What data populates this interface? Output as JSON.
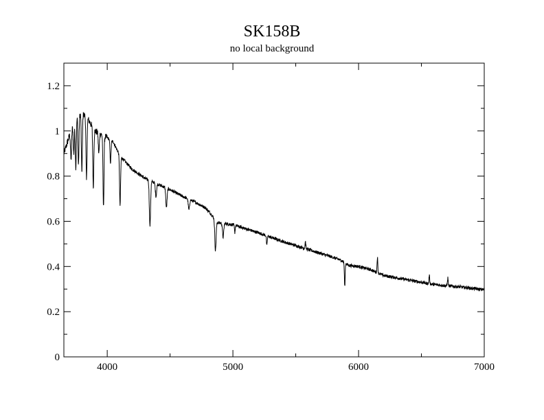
{
  "chart_data": {
    "type": "line",
    "title": "SK158B",
    "subtitle": "no local background",
    "xlabel": "",
    "ylabel": "",
    "xlim": [
      3655,
      7000
    ],
    "ylim": [
      0,
      1.3
    ],
    "x_ticks": [
      4000,
      5000,
      6000,
      7000
    ],
    "x_tick_labels": [
      "4000",
      "5000",
      "6000",
      "7000"
    ],
    "y_ticks": [
      0,
      0.2,
      0.4,
      0.6,
      0.8,
      1.0,
      1.2
    ],
    "y_tick_labels": [
      "0",
      "0.2",
      "0.4",
      "0.6",
      "0.8",
      "1",
      "1.2"
    ],
    "grid": false,
    "legend": "none",
    "series": [
      {
        "name": "SK158B spectrum",
        "color": "#000000",
        "continuum": [
          [
            3655,
            0.9
          ],
          [
            3700,
            0.98
          ],
          [
            3750,
            1.06
          ],
          [
            3800,
            1.08
          ],
          [
            3850,
            1.05
          ],
          [
            3900,
            1.0
          ],
          [
            4000,
            0.97
          ],
          [
            4050,
            0.95
          ],
          [
            4100,
            0.89
          ],
          [
            4200,
            0.83
          ],
          [
            4300,
            0.79
          ],
          [
            4400,
            0.765
          ],
          [
            4500,
            0.74
          ],
          [
            4600,
            0.71
          ],
          [
            4700,
            0.685
          ],
          [
            4780,
            0.66
          ],
          [
            4830,
            0.63
          ],
          [
            4870,
            0.595
          ],
          [
            5000,
            0.585
          ],
          [
            5200,
            0.55
          ],
          [
            5400,
            0.51
          ],
          [
            5600,
            0.475
          ],
          [
            5800,
            0.44
          ],
          [
            5870,
            0.425
          ],
          [
            5920,
            0.405
          ],
          [
            6000,
            0.4
          ],
          [
            6100,
            0.385
          ],
          [
            6200,
            0.36
          ],
          [
            6400,
            0.34
          ],
          [
            6600,
            0.32
          ],
          [
            6800,
            0.31
          ],
          [
            7000,
            0.297
          ]
        ],
        "features": [
          {
            "wl": 3712,
            "min": 0.87
          },
          {
            "wl": 3734,
            "min": 0.9
          },
          {
            "wl": 3750,
            "min": 0.84
          },
          {
            "wl": 3771,
            "min": 0.85
          },
          {
            "wl": 3798,
            "min": 0.82
          },
          {
            "wl": 3835,
            "min": 0.78
          },
          {
            "wl": 3889,
            "min": 0.75
          },
          {
            "wl": 3933,
            "min": 0.9
          },
          {
            "wl": 3970,
            "min": 0.66
          },
          {
            "wl": 4026,
            "min": 0.86
          },
          {
            "wl": 4102,
            "min": 0.67
          },
          {
            "wl": 4340,
            "min": 0.58
          },
          {
            "wl": 4388,
            "min": 0.71
          },
          {
            "wl": 4471,
            "min": 0.66
          },
          {
            "wl": 4650,
            "min": 0.65
          },
          {
            "wl": 4861,
            "min": 0.47
          },
          {
            "wl": 4922,
            "min": 0.53
          },
          {
            "wl": 5015,
            "min": 0.55
          },
          {
            "wl": 5270,
            "min": 0.49
          },
          {
            "wl": 5577,
            "min": 0.51
          },
          {
            "wl": 5890,
            "min": 0.31
          },
          {
            "wl": 6150,
            "min": 0.44
          },
          {
            "wl": 6563,
            "min": 0.36
          },
          {
            "wl": 6710,
            "min": 0.35
          }
        ]
      }
    ]
  }
}
